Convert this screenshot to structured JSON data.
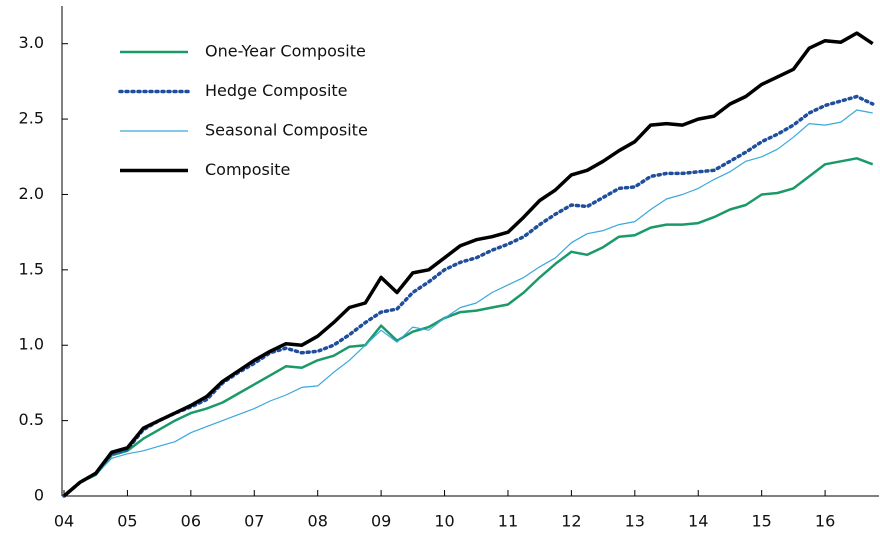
{
  "chart_data": {
    "type": "line",
    "x": [
      4,
      4.25,
      4.5,
      4.75,
      5,
      5.25,
      5.5,
      5.75,
      6,
      6.25,
      6.5,
      6.75,
      7,
      7.25,
      7.5,
      7.75,
      8,
      8.25,
      8.5,
      8.75,
      9,
      9.25,
      9.5,
      9.75,
      10,
      10.25,
      10.5,
      10.75,
      11,
      11.25,
      11.5,
      11.75,
      12,
      12.25,
      12.5,
      12.75,
      13,
      13.25,
      13.5,
      13.75,
      14,
      14.25,
      14.5,
      14.75,
      15,
      15.25,
      15.5,
      15.75,
      16,
      16.25,
      16.5,
      16.75
    ],
    "series": [
      {
        "name": "One-Year Composite",
        "color": "#1a9a68",
        "width": 2.5,
        "dash": "solid",
        "values": [
          0,
          0.09,
          0.14,
          0.27,
          0.3,
          0.38,
          0.44,
          0.5,
          0.55,
          0.58,
          0.62,
          0.68,
          0.74,
          0.8,
          0.86,
          0.85,
          0.9,
          0.93,
          0.99,
          1.0,
          1.13,
          1.03,
          1.09,
          1.12,
          1.18,
          1.22,
          1.23,
          1.25,
          1.27,
          1.35,
          1.45,
          1.54,
          1.62,
          1.6,
          1.65,
          1.72,
          1.73,
          1.78,
          1.8,
          1.8,
          1.81,
          1.85,
          1.9,
          1.93,
          2.0,
          2.01,
          2.04,
          2.12,
          2.2,
          2.22,
          2.24,
          2.2
        ]
      },
      {
        "name": "Hedge Composite",
        "color": "#1f4e9c",
        "width": 3.5,
        "dash": "dotted",
        "values": [
          0,
          0.09,
          0.15,
          0.28,
          0.31,
          0.44,
          0.5,
          0.55,
          0.59,
          0.64,
          0.75,
          0.82,
          0.88,
          0.95,
          0.98,
          0.95,
          0.96,
          1.0,
          1.07,
          1.15,
          1.22,
          1.24,
          1.35,
          1.42,
          1.5,
          1.55,
          1.58,
          1.63,
          1.67,
          1.72,
          1.8,
          1.87,
          1.93,
          1.92,
          1.98,
          2.04,
          2.05,
          2.12,
          2.14,
          2.14,
          2.15,
          2.16,
          2.22,
          2.28,
          2.35,
          2.4,
          2.46,
          2.54,
          2.59,
          2.62,
          2.65,
          2.6
        ]
      },
      {
        "name": "Seasonal Composite",
        "color": "#3aa8dc",
        "width": 1.2,
        "dash": "solid",
        "values": [
          0,
          0.09,
          0.14,
          0.25,
          0.28,
          0.3,
          0.33,
          0.36,
          0.42,
          0.46,
          0.5,
          0.54,
          0.58,
          0.63,
          0.67,
          0.72,
          0.73,
          0.82,
          0.9,
          1.0,
          1.1,
          1.02,
          1.12,
          1.1,
          1.18,
          1.25,
          1.28,
          1.35,
          1.4,
          1.45,
          1.52,
          1.58,
          1.68,
          1.74,
          1.76,
          1.8,
          1.82,
          1.9,
          1.97,
          2.0,
          2.04,
          2.1,
          2.15,
          2.22,
          2.25,
          2.3,
          2.38,
          2.47,
          2.46,
          2.48,
          2.56,
          2.54
        ]
      },
      {
        "name": "Composite",
        "color": "#000000",
        "width": 3.5,
        "dash": "solid",
        "values": [
          0,
          0.09,
          0.15,
          0.29,
          0.32,
          0.45,
          0.5,
          0.55,
          0.6,
          0.66,
          0.76,
          0.83,
          0.9,
          0.96,
          1.01,
          1.0,
          1.06,
          1.15,
          1.25,
          1.28,
          1.45,
          1.35,
          1.48,
          1.5,
          1.58,
          1.66,
          1.7,
          1.72,
          1.75,
          1.85,
          1.96,
          2.03,
          2.13,
          2.16,
          2.22,
          2.29,
          2.35,
          2.46,
          2.47,
          2.46,
          2.5,
          2.52,
          2.6,
          2.65,
          2.73,
          2.78,
          2.83,
          2.97,
          3.02,
          3.01,
          3.07,
          3.0
        ]
      }
    ],
    "xlim": [
      4,
      16.85
    ],
    "xticks": [
      {
        "value": 4,
        "label": "04"
      },
      {
        "value": 5,
        "label": "05"
      },
      {
        "value": 6,
        "label": "06"
      },
      {
        "value": 7,
        "label": "07"
      },
      {
        "value": 8,
        "label": "08"
      },
      {
        "value": 9,
        "label": "09"
      },
      10,
      11,
      12,
      13,
      14,
      15,
      16
    ],
    "ylim": [
      0,
      3.25
    ],
    "yticks": [
      0,
      0.5,
      {
        "value": 1,
        "label": "1.0"
      },
      1.5,
      {
        "value": 2,
        "label": "2.0"
      },
      2.5,
      {
        "value": 3,
        "label": "3.0"
      }
    ],
    "grid": false,
    "legend": "upper-left"
  }
}
